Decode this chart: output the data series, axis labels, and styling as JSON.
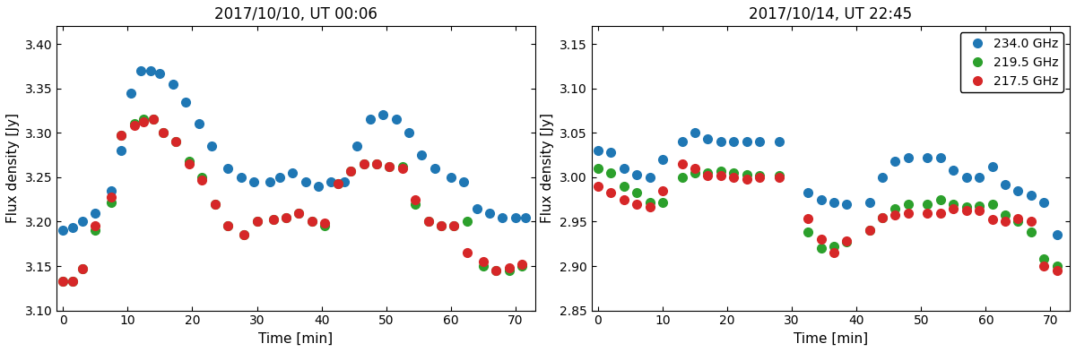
{
  "panel1_title": "2017/10/10, UT 00:06",
  "panel2_title": "2017/10/14, UT 22:45",
  "xlabel": "Time [min]",
  "ylabel": "Flux density [Jy]",
  "colors": {
    "blue": "#1f77b4",
    "green": "#2ca02c",
    "red": "#d62728"
  },
  "legend_labels": [
    "234.0 GHz",
    "219.5 GHz",
    "217.5 GHz"
  ],
  "markersize": 7,
  "panel1": {
    "xlim": [
      -1,
      73
    ],
    "ylim": [
      3.1,
      3.42
    ],
    "yticks": [
      3.1,
      3.15,
      3.2,
      3.25,
      3.3,
      3.35,
      3.4
    ],
    "xticks": [
      0,
      10,
      20,
      30,
      40,
      50,
      60,
      70
    ],
    "blue_x": [
      0.0,
      1.5,
      3.0,
      5.0,
      7.5,
      9.0,
      10.5,
      12.0,
      13.5,
      15.0,
      17.0,
      19.0,
      21.0,
      23.0,
      25.5,
      27.5,
      29.5,
      32.0,
      33.5,
      35.5,
      37.5,
      39.5,
      41.5,
      43.5,
      45.5,
      47.5,
      49.5,
      51.5,
      53.5,
      55.5,
      57.5,
      60.0,
      62.0,
      64.0,
      66.0,
      68.0,
      70.0,
      71.5
    ],
    "blue_y": [
      3.19,
      3.193,
      3.2,
      3.21,
      3.235,
      3.28,
      3.345,
      3.37,
      3.37,
      3.367,
      3.355,
      3.335,
      3.31,
      3.285,
      3.26,
      3.25,
      3.245,
      3.245,
      3.25,
      3.255,
      3.245,
      3.24,
      3.245,
      3.245,
      3.285,
      3.315,
      3.32,
      3.315,
      3.3,
      3.275,
      3.26,
      3.25,
      3.245,
      3.215,
      3.21,
      3.205,
      3.205,
      3.205
    ],
    "green_x": [
      0.0,
      1.5,
      3.0,
      5.0,
      7.5,
      9.0,
      11.0,
      12.5,
      14.0,
      15.5,
      17.5,
      19.5,
      21.5,
      23.5,
      25.5,
      28.0,
      30.0,
      32.5,
      34.5,
      36.5,
      38.5,
      40.5,
      42.5,
      44.5,
      46.5,
      48.5,
      50.5,
      52.5,
      54.5,
      56.5,
      58.5,
      60.5,
      62.5,
      65.0,
      67.0,
      69.0,
      71.0
    ],
    "green_y": [
      3.133,
      3.133,
      3.147,
      3.19,
      3.222,
      3.297,
      3.31,
      3.315,
      3.315,
      3.3,
      3.29,
      3.268,
      3.25,
      3.22,
      3.195,
      3.185,
      3.2,
      3.202,
      3.205,
      3.21,
      3.2,
      3.195,
      3.243,
      3.257,
      3.265,
      3.265,
      3.262,
      3.262,
      3.22,
      3.2,
      3.195,
      3.195,
      3.2,
      3.15,
      3.145,
      3.145,
      3.15
    ],
    "red_x": [
      0.0,
      1.5,
      3.0,
      5.0,
      7.5,
      9.0,
      11.0,
      12.5,
      14.0,
      15.5,
      17.5,
      19.5,
      21.5,
      23.5,
      25.5,
      28.0,
      30.0,
      32.5,
      34.5,
      36.5,
      38.5,
      40.5,
      42.5,
      44.5,
      46.5,
      48.5,
      50.5,
      52.5,
      54.5,
      56.5,
      58.5,
      60.5,
      62.5,
      65.0,
      67.0,
      69.0,
      71.0
    ],
    "red_y": [
      3.133,
      3.133,
      3.147,
      3.195,
      3.228,
      3.297,
      3.308,
      3.312,
      3.315,
      3.3,
      3.29,
      3.265,
      3.247,
      3.22,
      3.195,
      3.185,
      3.2,
      3.202,
      3.205,
      3.21,
      3.2,
      3.198,
      3.243,
      3.257,
      3.265,
      3.265,
      3.262,
      3.26,
      3.225,
      3.2,
      3.195,
      3.195,
      3.165,
      3.155,
      3.145,
      3.148,
      3.152
    ]
  },
  "panel2": {
    "xlim": [
      -1,
      73
    ],
    "ylim": [
      2.85,
      3.17
    ],
    "yticks": [
      2.85,
      2.9,
      2.95,
      3.0,
      3.05,
      3.1,
      3.15
    ],
    "xticks": [
      0,
      10,
      20,
      30,
      40,
      50,
      60,
      70
    ],
    "blue_x": [
      0.0,
      2.0,
      4.0,
      6.0,
      8.0,
      10.0,
      13.0,
      15.0,
      17.0,
      19.0,
      21.0,
      23.0,
      25.0,
      28.0,
      32.5,
      34.5,
      36.5,
      38.5,
      42.0,
      44.0,
      46.0,
      48.0,
      51.0,
      53.0,
      55.0,
      57.0,
      59.0,
      61.0,
      63.0,
      65.0,
      67.0,
      69.0,
      71.0
    ],
    "blue_y": [
      3.03,
      3.028,
      3.01,
      3.003,
      3.0,
      3.02,
      3.04,
      3.05,
      3.043,
      3.04,
      3.04,
      3.04,
      3.04,
      3.04,
      2.983,
      2.975,
      2.972,
      2.97,
      2.972,
      3.0,
      3.018,
      3.022,
      3.022,
      3.022,
      3.008,
      3.0,
      3.0,
      3.012,
      2.992,
      2.985,
      2.98,
      2.972,
      2.935
    ],
    "green_x": [
      0.0,
      2.0,
      4.0,
      6.0,
      8.0,
      10.0,
      13.0,
      15.0,
      17.0,
      19.0,
      21.0,
      23.0,
      25.0,
      28.0,
      32.5,
      34.5,
      36.5,
      38.5,
      42.0,
      44.0,
      46.0,
      48.0,
      51.0,
      53.0,
      55.0,
      57.0,
      59.0,
      61.0,
      63.0,
      65.0,
      67.0,
      69.0,
      71.0
    ],
    "green_y": [
      3.01,
      3.005,
      2.99,
      2.983,
      2.972,
      2.972,
      3.0,
      3.005,
      3.005,
      3.007,
      3.005,
      3.003,
      3.002,
      3.002,
      2.938,
      2.92,
      2.922,
      2.927,
      2.94,
      2.955,
      2.965,
      2.97,
      2.97,
      2.975,
      2.97,
      2.967,
      2.968,
      2.97,
      2.958,
      2.95,
      2.938,
      2.908,
      2.9
    ],
    "red_x": [
      0.0,
      2.0,
      4.0,
      6.0,
      8.0,
      10.0,
      13.0,
      15.0,
      17.0,
      19.0,
      21.0,
      23.0,
      25.0,
      28.0,
      32.5,
      34.5,
      36.5,
      38.5,
      42.0,
      44.0,
      46.0,
      48.0,
      51.0,
      53.0,
      55.0,
      57.0,
      59.0,
      61.0,
      63.0,
      65.0,
      67.0,
      69.0,
      71.0
    ],
    "red_y": [
      2.99,
      2.983,
      2.975,
      2.97,
      2.967,
      2.985,
      3.015,
      3.01,
      3.002,
      3.002,
      3.0,
      2.998,
      3.0,
      3.0,
      2.953,
      2.93,
      2.915,
      2.928,
      2.94,
      2.955,
      2.958,
      2.96,
      2.96,
      2.96,
      2.965,
      2.963,
      2.963,
      2.952,
      2.95,
      2.953,
      2.95,
      2.9,
      2.895
    ]
  }
}
